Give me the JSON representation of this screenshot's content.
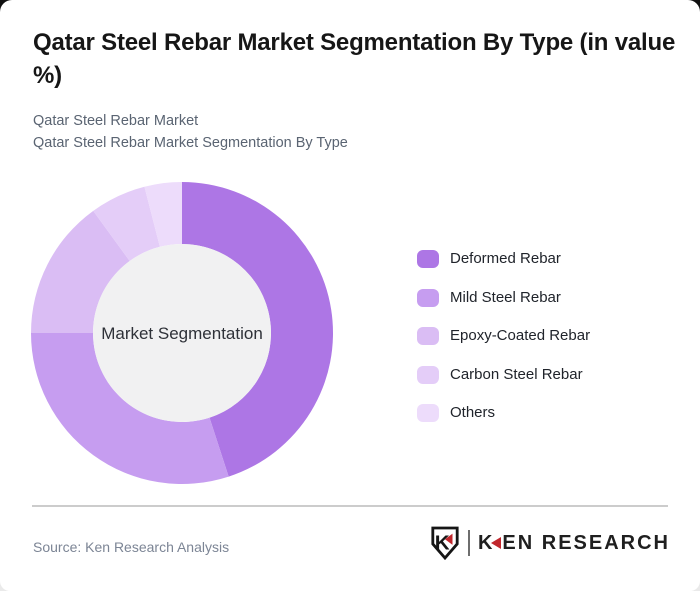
{
  "header": {
    "title": "Qatar Steel Rebar Market Segmentation By Type (in value %)",
    "subtitle_line1": "Qatar Steel Rebar Market",
    "subtitle_line2": "Qatar Steel Rebar Market Segmentation By Type"
  },
  "chart_data": {
    "type": "pie",
    "variant": "donut",
    "title": "Qatar Steel Rebar Market Segmentation By Type (in value %)",
    "labels": [
      "Deformed Rebar",
      "Mild Steel Rebar",
      "Epoxy-Coated Rebar",
      "Carbon Steel Rebar",
      "Others"
    ],
    "values": [
      45,
      30,
      15,
      6,
      4
    ],
    "unit": "%",
    "colors": [
      "#ad76e5",
      "#c69df0",
      "#dabdf4",
      "#e4cdf8",
      "#eddcfb"
    ],
    "hole_color": "#f1f1f2",
    "center_label": "Market Segmentation",
    "start_angle": "top",
    "direction": "clockwise",
    "legend_position": "right",
    "data_labels_shown": false
  },
  "footer": {
    "source": "Source: Ken Research Analysis",
    "logo": {
      "shield_letter": "K",
      "prefix": "K",
      "suffix": "EN RESEARCH"
    }
  },
  "colors": {
    "accent_red": "#c1272d",
    "divider": "#cccccc",
    "title_text": "#161616",
    "subtitle_text": "#5a6472"
  }
}
